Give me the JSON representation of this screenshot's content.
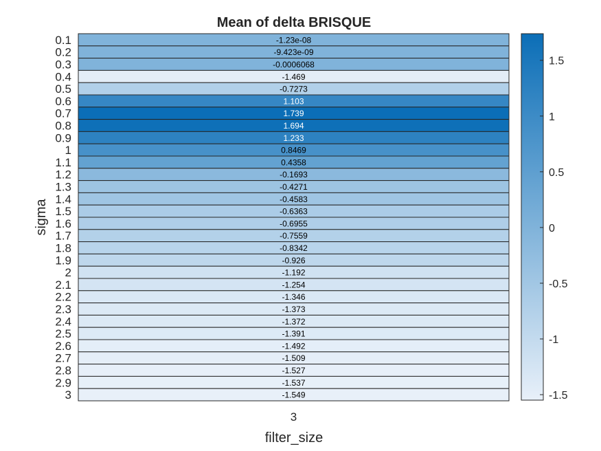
{
  "chart_data": {
    "type": "heatmap",
    "title": "Mean of delta BRISQUE",
    "xlabel": "filter_size",
    "ylabel": "sigma",
    "x_categories": [
      "3"
    ],
    "y_categories": [
      "0.1",
      "0.2",
      "0.3",
      "0.4",
      "0.5",
      "0.6",
      "0.7",
      "0.8",
      "0.9",
      "1",
      "1.1",
      "1.2",
      "1.3",
      "1.4",
      "1.5",
      "1.6",
      "1.7",
      "1.8",
      "1.9",
      "2",
      "2.1",
      "2.2",
      "2.3",
      "2.4",
      "2.5",
      "2.6",
      "2.7",
      "2.8",
      "2.9",
      "3"
    ],
    "values": [
      -1.23e-08,
      -9.423e-09,
      -0.0006068,
      -1.469,
      -0.7273,
      1.103,
      1.739,
      1.694,
      1.233,
      0.8469,
      0.4358,
      -0.1693,
      -0.4271,
      -0.4583,
      -0.6363,
      -0.6955,
      -0.7559,
      -0.8342,
      -0.926,
      -1.192,
      -1.254,
      -1.346,
      -1.373,
      -1.372,
      -1.391,
      -1.492,
      -1.509,
      -1.527,
      -1.537,
      -1.549
    ],
    "value_labels": [
      "-1.23e-08",
      "-9.423e-09",
      "-0.0006068",
      "-1.469",
      "-0.7273",
      "1.103",
      "1.739",
      "1.694",
      "1.233",
      "0.8469",
      "0.4358",
      "-0.1693",
      "-0.4271",
      "-0.4583",
      "-0.6363",
      "-0.6955",
      "-0.7559",
      "-0.8342",
      "-0.926",
      "-1.192",
      "-1.254",
      "-1.346",
      "-1.373",
      "-1.372",
      "-1.391",
      "-1.492",
      "-1.509",
      "-1.527",
      "-1.537",
      "-1.549"
    ],
    "colorbar": {
      "min": -1.549,
      "max": 1.739,
      "ticks": [
        -1.5,
        -1,
        -0.5,
        0,
        0.5,
        1,
        1.5
      ],
      "tick_labels": [
        "-1.5",
        "-1",
        "-0.5",
        "0",
        "0.5",
        "1",
        "1.5"
      ],
      "color_low": "#e8f0f9",
      "color_high": "#0b6eb7"
    },
    "grid": true
  }
}
